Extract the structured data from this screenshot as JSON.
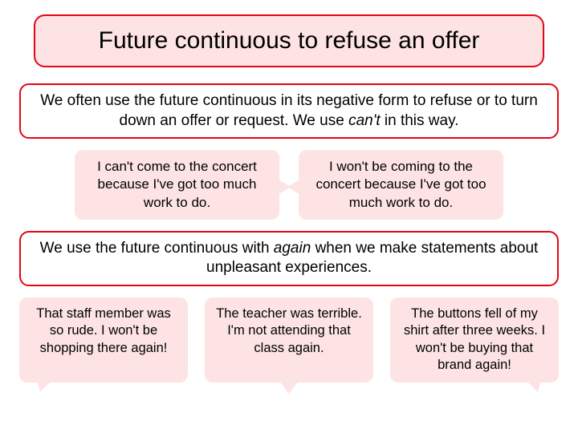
{
  "colors": {
    "border": "#e30613",
    "bubble_bg": "#fde3e4",
    "page_bg": "#ffffff",
    "text": "#000000"
  },
  "title": {
    "text": "Future continuous to refuse an offer",
    "fontsize": 30,
    "bg": "#fde3e4",
    "border": "#e30613",
    "radius": 14
  },
  "rule1": {
    "pre": "We often use the future continuous in its negative form to refuse or to turn down an offer or request. We use ",
    "italic": "can't",
    "post": " in this way.",
    "fontsize": 19
  },
  "pair": [
    {
      "text": "I can't come to the concert because I've got too much work to do.",
      "tail": "right"
    },
    {
      "text": "I won't be coming to the concert because I've got too much work to do.",
      "tail": "left"
    }
  ],
  "rule2": {
    "pre": "We use the future continuous with ",
    "italic": "again",
    "post": " when we make statements about unpleasant experiences.",
    "fontsize": 19
  },
  "trio": [
    {
      "text": "That staff member was so rude. I won't be shopping there again!",
      "tail": "bl"
    },
    {
      "text": "The teacher was terrible. I'm not attending that class again.",
      "tail": "down"
    },
    {
      "text": "The buttons fell of my shirt after three weeks. I won't be buying that brand again!",
      "tail": "br"
    }
  ]
}
